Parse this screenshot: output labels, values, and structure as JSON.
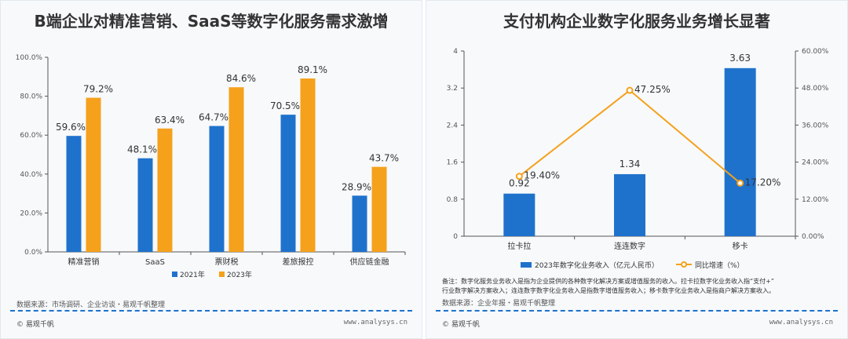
{
  "colors": {
    "blue": "#1f72cc",
    "orange": "#f5a11c",
    "axis": "#555555"
  },
  "left": {
    "title": "B端企业对精准营销、SaaS等数字化服务需求激增",
    "source": "数据来源：市场调研、企业访谈・易观千帆整理",
    "logo": "易观千帆",
    "site": "www.analysys.cn"
  },
  "right": {
    "title": "支付机构企业数字化服务业务增长显著",
    "note_line1": "备注：数字化服务业务收入是指为企业提供的各种数字化解决方案或增值服务的收入。拉卡拉数字化业务收入指“支付+”",
    "note_line2": "行业数字解决方案收入；连连数字数字化业务收入是指数字增值服务收入；移卡数字化业务收入是指商户解决方案收入。",
    "source": "数据来源：企业年报・易观千帆整理",
    "logo": "易观千帆",
    "site": "www.analysys.cn"
  },
  "chart_data": [
    {
      "type": "bar",
      "title": "B端企业对精准营销、SaaS等数字化服务需求激增",
      "categories": [
        "精准营销",
        "SaaS",
        "票财税",
        "差旅报控",
        "供应链金融"
      ],
      "series": [
        {
          "name": "2021年",
          "values": [
            59.6,
            48.1,
            64.7,
            70.5,
            28.9
          ]
        },
        {
          "name": "2023年",
          "values": [
            79.2,
            63.4,
            84.6,
            89.1,
            43.7
          ]
        }
      ],
      "value_labels": [
        [
          "59.6%",
          "48.1%",
          "64.7%",
          "70.5%",
          "28.9%"
        ],
        [
          "79.2%",
          "63.4%",
          "84.6%",
          "89.1%",
          "43.7%"
        ]
      ],
      "ylim": [
        0,
        100
      ],
      "yticks": [
        "0.0%",
        "20.0%",
        "40.0%",
        "60.0%",
        "80.0%",
        "100.0%"
      ],
      "ytick_values": [
        0,
        20,
        40,
        60,
        80,
        100
      ],
      "legend": "bottom"
    },
    {
      "type": "bar",
      "title": "支付机构企业数字化服务业务增长显著",
      "categories": [
        "拉卡拉",
        "连连数字",
        "移卡"
      ],
      "bar_series": {
        "name": "2023年数字化业务收入（亿元人民币）",
        "values": [
          0.92,
          1.34,
          3.63
        ],
        "labels": [
          "0.92",
          "1.34",
          "3.63"
        ]
      },
      "line_series": {
        "name": "同比增速（%）",
        "values": [
          19.4,
          47.25,
          17.2
        ],
        "labels": [
          "19.40%",
          "47.25%",
          "17.20%"
        ]
      },
      "ylim": [
        0,
        4
      ],
      "yticks": [
        "0",
        "0.8",
        "1.6",
        "2.4",
        "3.2",
        "4"
      ],
      "ytick_values": [
        0,
        0.8,
        1.6,
        2.4,
        3.2,
        4
      ],
      "y2lim": [
        0,
        60
      ],
      "y2ticks": [
        "0.00%",
        "12.00%",
        "24.00%",
        "36.00%",
        "48.00%",
        "60.00%"
      ],
      "y2tick_values": [
        0,
        12,
        24,
        36,
        48,
        60
      ],
      "legend": "bottom"
    }
  ]
}
